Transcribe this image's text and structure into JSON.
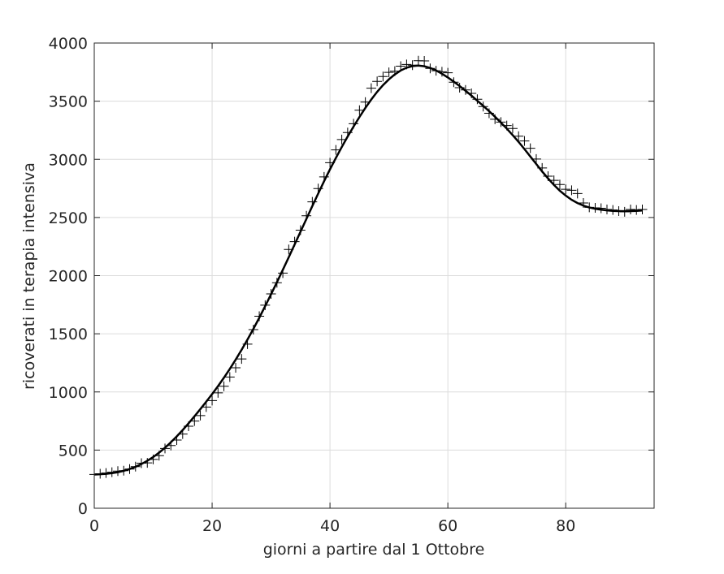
{
  "chart_data": {
    "type": "line",
    "xlabel": "giorni a partire dal 1 Ottobre",
    "ylabel": "ricoverati in terapia intensiva",
    "x": [
      0,
      1,
      2,
      3,
      4,
      5,
      6,
      7,
      8,
      9,
      10,
      11,
      12,
      13,
      14,
      15,
      16,
      17,
      18,
      19,
      20,
      21,
      22,
      23,
      24,
      25,
      26,
      27,
      28,
      29,
      30,
      31,
      32,
      33,
      34,
      35,
      36,
      37,
      38,
      39,
      40,
      41,
      42,
      43,
      44,
      45,
      46,
      47,
      48,
      49,
      50,
      51,
      52,
      53,
      54,
      55,
      56,
      57,
      58,
      59,
      60,
      61,
      62,
      63,
      64,
      65,
      66,
      67,
      68,
      69,
      70,
      71,
      72,
      73,
      74,
      75,
      76,
      77,
      78,
      79,
      80,
      81,
      82,
      83,
      84,
      85,
      86,
      87,
      88,
      89,
      90,
      91,
      92,
      93
    ],
    "series": [
      {
        "color": "#000000",
        "marker": "+",
        "line": false,
        "values": [
          291,
          297,
          303,
          310,
          319,
          323,
          337,
          358,
          387,
          390,
          420,
          452,
          514,
          539,
          586,
          638,
          705,
          750,
          797,
          870,
          926,
          992,
          1049,
          1128,
          1208,
          1284,
          1411,
          1536,
          1651,
          1746,
          1843,
          1939,
          2022,
          2225,
          2292,
          2391,
          2515,
          2634,
          2749,
          2849,
          2971,
          3081,
          3170,
          3230,
          3306,
          3422,
          3492,
          3612,
          3670,
          3712,
          3748,
          3758,
          3801,
          3816,
          3810,
          3848,
          3846,
          3782,
          3762,
          3753,
          3744,
          3663,
          3616,
          3597,
          3567,
          3517,
          3454,
          3396,
          3345,
          3320,
          3291,
          3265,
          3199,
          3158,
          3095,
          3003,
          2926,
          2855,
          2819,
          2784,
          2743,
          2734,
          2706,
          2625,
          2587,
          2583,
          2579,
          2569,
          2565,
          2555,
          2549,
          2569,
          2565,
          2569
        ]
      },
      {
        "color": "#000000",
        "marker": null,
        "line": true,
        "values": [
          290,
          292,
          296,
          302,
          310,
          322,
          337,
          356,
          380,
          408,
          440,
          478,
          520,
          567,
          618,
          672,
          730,
          790,
          852,
          916,
          982,
          1050,
          1122,
          1198,
          1278,
          1362,
          1450,
          1542,
          1638,
          1738,
          1840,
          1944,
          2050,
          2158,
          2268,
          2378,
          2488,
          2598,
          2706,
          2812,
          2914,
          3012,
          3106,
          3196,
          3282,
          3364,
          3442,
          3514,
          3580,
          3638,
          3688,
          3730,
          3764,
          3788,
          3802,
          3806,
          3800,
          3786,
          3764,
          3736,
          3704,
          3668,
          3630,
          3590,
          3548,
          3504,
          3460,
          3414,
          3366,
          3316,
          3264,
          3208,
          3150,
          3088,
          3024,
          2960,
          2896,
          2836,
          2780,
          2730,
          2688,
          2652,
          2624,
          2602,
          2586,
          2575,
          2567,
          2561,
          2557,
          2555,
          2554,
          2555,
          2557,
          2560
        ]
      }
    ],
    "xlim": [
      0,
      95
    ],
    "xticks": [
      0,
      20,
      40,
      60,
      80
    ],
    "ylim": [
      0,
      4000
    ],
    "yticks": [
      0,
      500,
      1000,
      1500,
      2000,
      2500,
      3000,
      3500,
      4000
    ],
    "grid": true
  }
}
